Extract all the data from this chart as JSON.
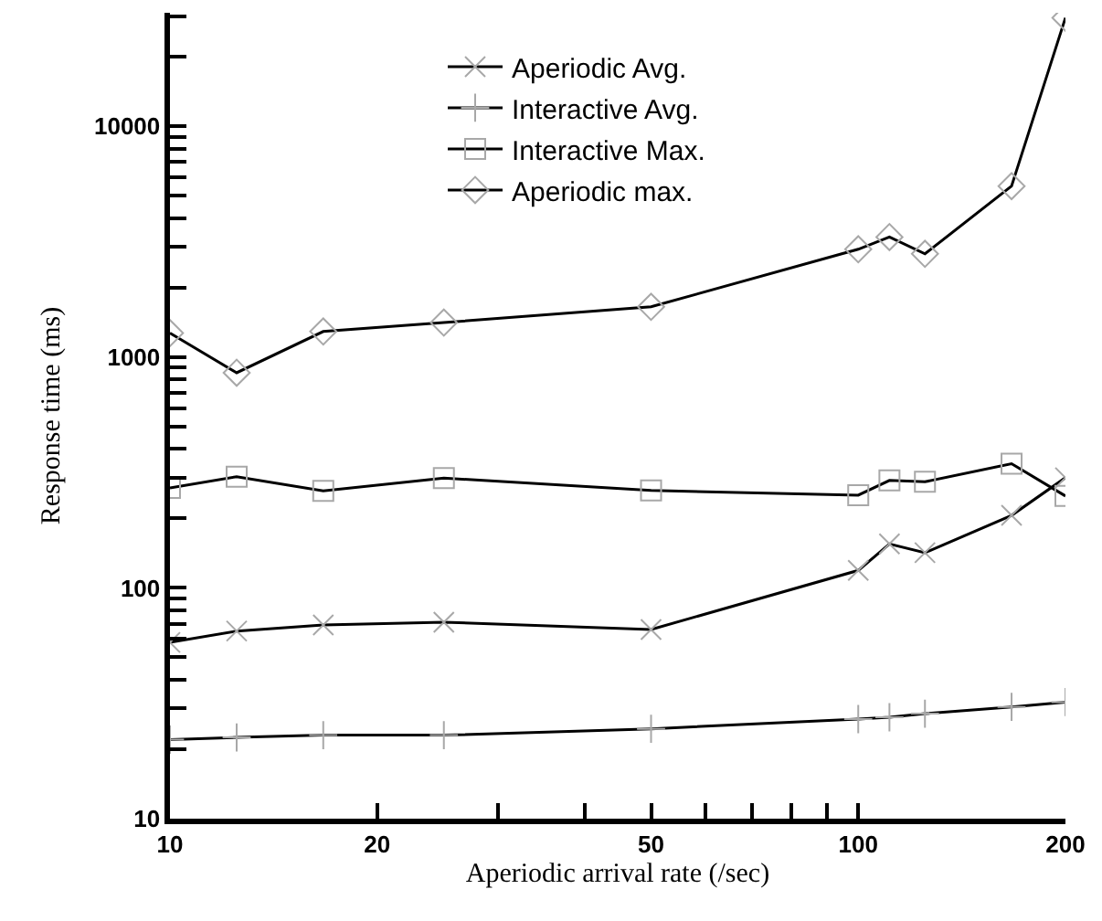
{
  "chart_data": {
    "type": "line",
    "xlabel": "Aperiodic arrival rate (/sec)",
    "ylabel": "Response time (ms)",
    "x": [
      10,
      12.5,
      16.7,
      25,
      50,
      100,
      111,
      125,
      167,
      200
    ],
    "series": [
      {
        "name": "Aperiodic Avg.",
        "color": "#000000",
        "marker": "cross",
        "values": [
          58,
          65,
          69,
          71,
          66,
          119,
          155,
          142,
          206,
          300
        ]
      },
      {
        "name": "Interactive Avg.",
        "color": "#000000",
        "marker": "plus",
        "values": [
          22,
          22.5,
          23,
          23,
          24.5,
          27,
          27.5,
          28.5,
          30.5,
          32
        ]
      },
      {
        "name": "Interactive Max.",
        "color": "#000000",
        "marker": "square",
        "values": [
          271,
          303,
          263,
          299,
          264,
          252,
          292,
          288,
          345,
          250
        ]
      },
      {
        "name": "Aperiodic max.",
        "color": "#000000",
        "marker": "diamond",
        "values": [
          1270,
          855,
          1290,
          1410,
          1650,
          2930,
          3310,
          2800,
          5500,
          29500
        ]
      }
    ],
    "log": "xy",
    "xlim": [
      10,
      200
    ],
    "ylim": [
      10,
      31000
    ],
    "xticks": [
      10,
      20,
      {
        "value": 30,
        "label": null
      },
      {
        "value": 40,
        "label": null
      },
      50,
      {
        "value": 60,
        "label": null
      },
      {
        "value": 70,
        "label": null
      },
      {
        "value": 80,
        "label": null
      },
      {
        "value": 90,
        "label": null
      },
      100,
      200
    ],
    "yticks": [
      10,
      {
        "value": 20,
        "label": null
      },
      {
        "value": 30,
        "label": null
      },
      {
        "value": 40,
        "label": null
      },
      {
        "value": 50,
        "label": null
      },
      {
        "value": 60,
        "label": null
      },
      {
        "value": 70,
        "label": null
      },
      {
        "value": 80,
        "label": null
      },
      {
        "value": 90,
        "label": null
      },
      100,
      {
        "value": 200,
        "label": null
      },
      {
        "value": 300,
        "label": null
      },
      {
        "value": 400,
        "label": null
      },
      {
        "value": 500,
        "label": null
      },
      {
        "value": 600,
        "label": null
      },
      {
        "value": 700,
        "label": null
      },
      {
        "value": 800,
        "label": null
      },
      {
        "value": 900,
        "label": null
      },
      1000,
      {
        "value": 2000,
        "label": null
      },
      {
        "value": 3000,
        "label": null
      },
      {
        "value": 4000,
        "label": null
      },
      {
        "value": 5000,
        "label": null
      },
      {
        "value": 6000,
        "label": null
      },
      {
        "value": 7000,
        "label": null
      },
      {
        "value": 8000,
        "label": null
      },
      {
        "value": 9000,
        "label": null
      },
      10000,
      {
        "value": 20000,
        "label": null
      },
      {
        "value": 30000,
        "label": null
      }
    ],
    "legend": "top left"
  }
}
